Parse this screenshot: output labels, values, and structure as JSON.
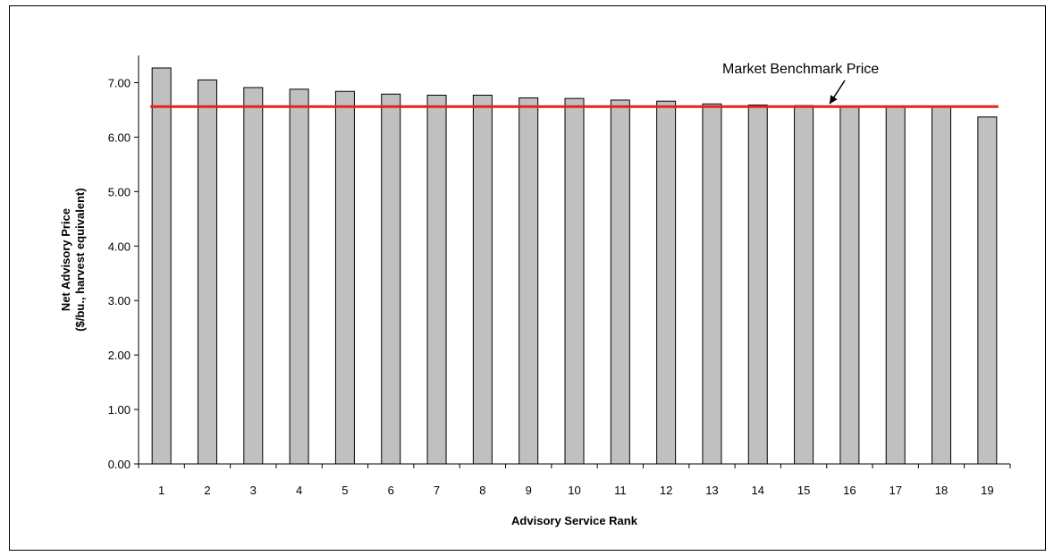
{
  "chart_data": {
    "type": "bar",
    "categories": [
      "1",
      "2",
      "3",
      "4",
      "5",
      "6",
      "7",
      "8",
      "9",
      "10",
      "11",
      "12",
      "13",
      "14",
      "15",
      "16",
      "17",
      "18",
      "19"
    ],
    "values": [
      7.27,
      7.05,
      6.91,
      6.88,
      6.84,
      6.79,
      6.77,
      6.77,
      6.72,
      6.71,
      6.68,
      6.66,
      6.61,
      6.59,
      6.58,
      6.57,
      6.56,
      6.55,
      6.37
    ],
    "benchmark": {
      "label": "Market Benchmark Price",
      "value": 6.56
    },
    "title": "",
    "xlabel": "Advisory Service Rank",
    "ylabel_line1": "Net Advisory Price",
    "ylabel_line2": "($/bu., harvest equivalent)",
    "ylim": [
      0,
      7.5
    ],
    "yticks": [
      "0.00",
      "1.00",
      "2.00",
      "3.00",
      "4.00",
      "5.00",
      "6.00",
      "7.00"
    ],
    "grid": false,
    "legend": "none",
    "colors": {
      "bar": "#c0c0c0",
      "bar_stroke": "#000000",
      "benchmark_line": "#e8211c"
    }
  }
}
